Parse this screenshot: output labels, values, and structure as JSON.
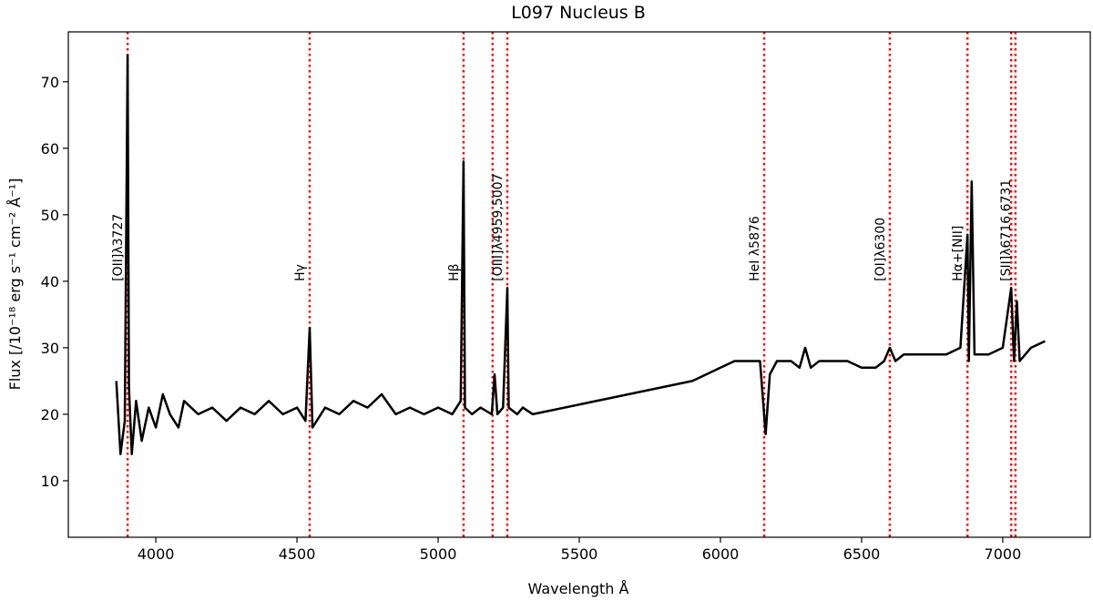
{
  "chart_data": {
    "type": "line",
    "title": "L097 Nucleus B",
    "xlabel": "Wavelength Å",
    "ylabel": "Flux [/10⁻¹⁸ erg s⁻¹ cm⁻² Å⁻¹]",
    "xlim": [
      3690,
      7310
    ],
    "ylim": [
      1.5,
      77.5
    ],
    "x_ticks": [
      4000,
      4500,
      5000,
      5500,
      6000,
      6500,
      7000
    ],
    "y_ticks": [
      10,
      20,
      30,
      40,
      50,
      60,
      70
    ],
    "grid": false,
    "line_color": "#000000",
    "marker_line_color": "#ff0000",
    "series": [
      {
        "points": [
          [
            3860,
            25
          ],
          [
            3875,
            14
          ],
          [
            3890,
            19
          ],
          [
            3900,
            74
          ],
          [
            3905,
            24
          ],
          [
            3915,
            14
          ],
          [
            3930,
            22
          ],
          [
            3950,
            16
          ],
          [
            3975,
            21
          ],
          [
            4000,
            18
          ],
          [
            4025,
            23
          ],
          [
            4050,
            20
          ],
          [
            4080,
            18
          ],
          [
            4100,
            22
          ],
          [
            4150,
            20
          ],
          [
            4200,
            21
          ],
          [
            4250,
            19
          ],
          [
            4300,
            21
          ],
          [
            4350,
            20
          ],
          [
            4400,
            22
          ],
          [
            4450,
            20
          ],
          [
            4500,
            21
          ],
          [
            4530,
            19
          ],
          [
            4545,
            33
          ],
          [
            4555,
            18
          ],
          [
            4600,
            21
          ],
          [
            4650,
            20
          ],
          [
            4700,
            22
          ],
          [
            4750,
            21
          ],
          [
            4800,
            23
          ],
          [
            4850,
            20
          ],
          [
            4900,
            21
          ],
          [
            4950,
            20
          ],
          [
            5000,
            21
          ],
          [
            5050,
            20
          ],
          [
            5080,
            22
          ],
          [
            5090,
            58
          ],
          [
            5095,
            21
          ],
          [
            5120,
            20
          ],
          [
            5150,
            21
          ],
          [
            5190,
            20
          ],
          [
            5200,
            26
          ],
          [
            5210,
            20
          ],
          [
            5230,
            21
          ],
          [
            5245,
            39
          ],
          [
            5250,
            21
          ],
          [
            5280,
            20
          ],
          [
            5300,
            21
          ],
          [
            5335,
            20
          ],
          [
            5900,
            25
          ],
          [
            5950,
            26
          ],
          [
            6000,
            27
          ],
          [
            6050,
            28
          ],
          [
            6100,
            28
          ],
          [
            6140,
            28
          ],
          [
            6160,
            17
          ],
          [
            6175,
            26
          ],
          [
            6200,
            28
          ],
          [
            6250,
            28
          ],
          [
            6280,
            27
          ],
          [
            6300,
            30
          ],
          [
            6320,
            27
          ],
          [
            6350,
            28
          ],
          [
            6400,
            28
          ],
          [
            6450,
            28
          ],
          [
            6500,
            27
          ],
          [
            6550,
            27
          ],
          [
            6580,
            28
          ],
          [
            6600,
            30
          ],
          [
            6620,
            28
          ],
          [
            6650,
            29
          ],
          [
            6700,
            29
          ],
          [
            6750,
            29
          ],
          [
            6800,
            29
          ],
          [
            6850,
            30
          ],
          [
            6862,
            38
          ],
          [
            6875,
            47
          ],
          [
            6880,
            28
          ],
          [
            6890,
            55
          ],
          [
            6900,
            29
          ],
          [
            6950,
            29
          ],
          [
            7000,
            30
          ],
          [
            7030,
            39
          ],
          [
            7040,
            28
          ],
          [
            7050,
            37
          ],
          [
            7060,
            28
          ],
          [
            7100,
            30
          ],
          [
            7150,
            31
          ]
        ]
      }
    ],
    "marker_lines": [
      {
        "x": 3900,
        "label": "[OII]λ3727"
      },
      {
        "x": 4545,
        "label": "Hγ"
      },
      {
        "x": 5090,
        "label": "Hβ"
      },
      {
        "x": 5193,
        "label": ""
      },
      {
        "x": 5245,
        "label": "[OIII]λ4959,5007"
      },
      {
        "x": 6155,
        "label": "HeI λ5876"
      },
      {
        "x": 6600,
        "label": "[OI]λ6300"
      },
      {
        "x": 6875,
        "label": "Hα+[NII]"
      },
      {
        "x": 7030,
        "label": ""
      },
      {
        "x": 7045,
        "label": "[SII]λ6716,6731"
      }
    ]
  }
}
